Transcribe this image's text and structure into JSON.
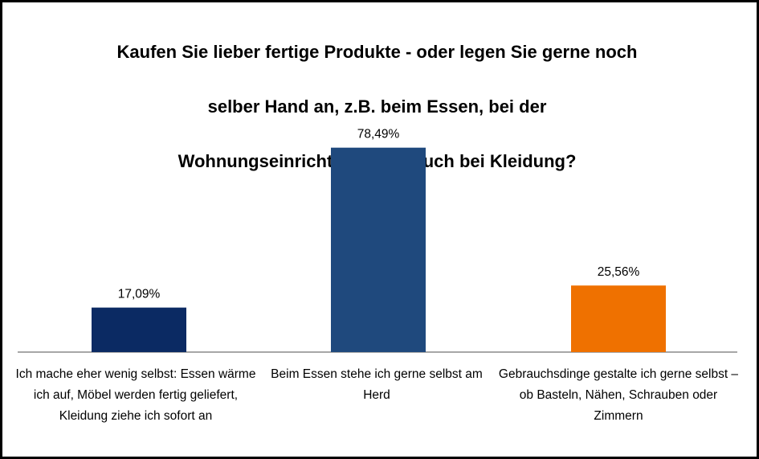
{
  "chart_data": {
    "type": "bar",
    "title": "Kaufen Sie lieber fertige Produkte - oder legen Sie gerne noch selber Hand an, z.B. beim Essen, bei der Wohnungseinrichtung oder auch bei Kleidung?",
    "title_lines": [
      "Kaufen Sie lieber fertige Produkte - oder legen Sie gerne noch",
      "selber Hand an, z.B. beim Essen, bei der",
      "Wohnungseinrichtung oder auch bei Kleidung?"
    ],
    "categories": [
      "Ich mache eher wenig selbst: Essen wärme ich auf, Möbel werden fertig geliefert, Kleidung ziehe ich sofort an",
      "Beim Essen stehe ich gerne selbst am Herd",
      "Gebrauchsdinge gestalte ich gerne selbst – ob Basteln, Nähen, Schrauben oder Zimmern"
    ],
    "values": [
      17.09,
      78.49,
      25.56
    ],
    "value_labels": [
      "17,09%",
      "78,49%",
      "25,56%"
    ],
    "colors": [
      "#0b2a63",
      "#1f497d",
      "#ef7100"
    ],
    "ylim": [
      0,
      100
    ],
    "grid": false,
    "legend": "none",
    "xlabel": "",
    "ylabel": ""
  }
}
